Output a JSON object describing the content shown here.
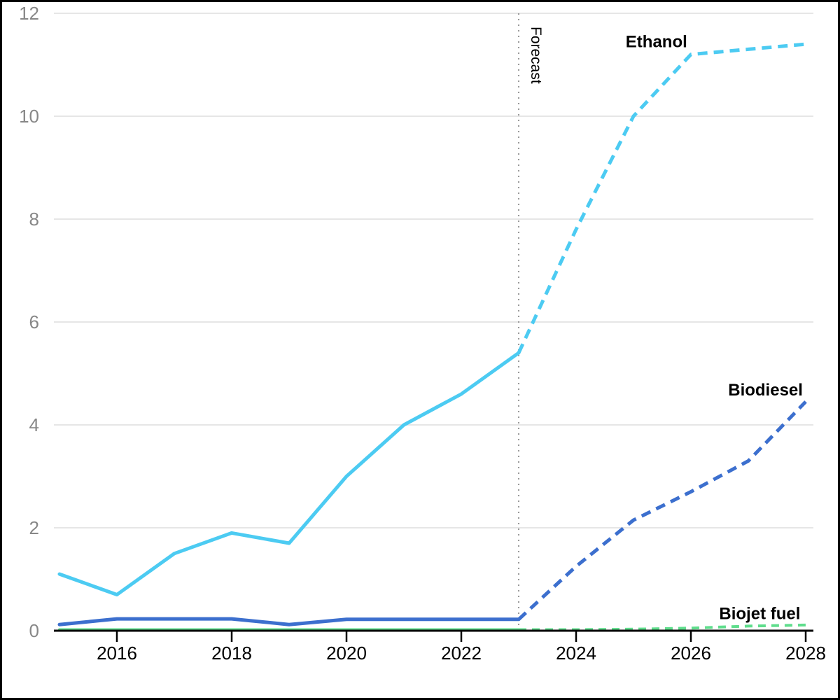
{
  "chart_data": {
    "type": "line",
    "title": "",
    "x": [
      2015,
      2016,
      2017,
      2018,
      2019,
      2020,
      2021,
      2022,
      2023,
      2024,
      2025,
      2026,
      2027,
      2028
    ],
    "xticks": [
      2016,
      2018,
      2020,
      2022,
      2024,
      2026,
      2028
    ],
    "yticks": [
      0,
      2,
      4,
      6,
      8,
      10,
      12
    ],
    "ylim": [
      0,
      12
    ],
    "xlim": [
      2014.9,
      2028.15
    ],
    "grid": true,
    "legend_position": "inline-labels",
    "forecast": {
      "year": 2023,
      "label": "Forecast",
      "historical_style": "solid",
      "forecast_style": "dashed"
    },
    "series": [
      {
        "name": "Ethanol",
        "color": "#4CCBF2",
        "line_width": 5,
        "values": [
          1.1,
          0.7,
          1.5,
          1.9,
          1.7,
          3.0,
          4.0,
          4.6,
          5.4,
          7.8,
          10.0,
          11.2,
          11.3,
          11.4
        ],
        "label_x": 2025.4,
        "label_y": 11.45
      },
      {
        "name": "Biodiesel",
        "color": "#3C6FCE",
        "line_width": 5,
        "values": [
          0.12,
          0.23,
          0.23,
          0.23,
          0.12,
          0.22,
          0.22,
          0.22,
          0.22,
          1.25,
          2.15,
          2.7,
          3.3,
          4.45
        ],
        "label_x": 2027.3,
        "label_y": 4.68
      },
      {
        "name": "Biojet fuel",
        "color": "#5FDD8C",
        "line_width": 4,
        "values": [
          0.02,
          0.02,
          0.02,
          0.02,
          0.02,
          0.02,
          0.02,
          0.02,
          0.02,
          0.02,
          0.03,
          0.05,
          0.09,
          0.11
        ],
        "label_x": 2027.2,
        "label_y": 0.33
      }
    ],
    "colors": {
      "background": "#ffffff",
      "border": "#000000",
      "gridline": "#e6e6e6",
      "axis_line": "#000000",
      "y_tick_label": "#878787",
      "x_tick_label": "#000000",
      "forecast_line": "#999999",
      "annotation_text": "#000000"
    }
  }
}
